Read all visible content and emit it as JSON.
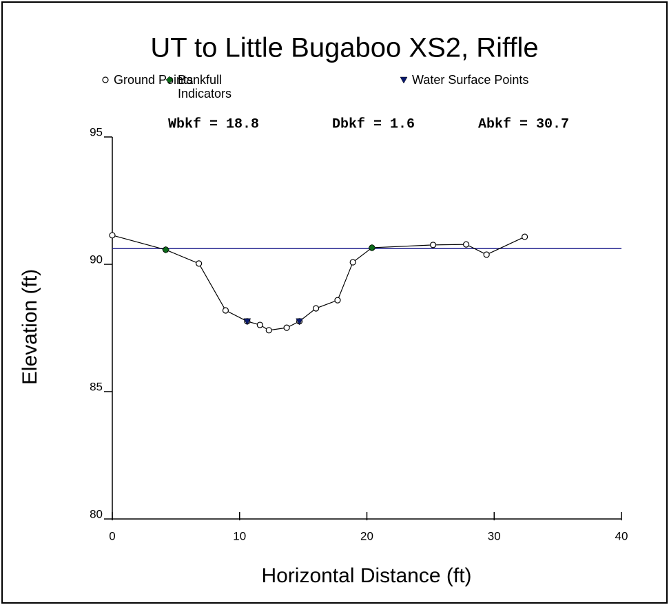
{
  "chart_data": {
    "type": "line",
    "title": "UT to Little Bugaboo XS2, Riffle",
    "xlabel": "Horizontal Distance (ft)",
    "ylabel": "Elevation (ft)",
    "annotations": [
      "Wbkf = 18.8",
      "Dbkf = 1.6",
      "Abkf = 30.7"
    ],
    "xlim": [
      0,
      40
    ],
    "xticks": [
      0,
      10,
      20,
      30,
      40
    ],
    "ylim": [
      80,
      95
    ],
    "yticks": [
      80,
      85,
      90,
      95
    ],
    "hline": {
      "value": 90.62,
      "color": "#1c1c8c"
    },
    "series": [
      {
        "name": "Ground Points",
        "marker": "circle",
        "color": "#000000",
        "x": [
          0,
          4.2,
          6.8,
          8.9,
          10.6,
          11.6,
          12.3,
          13.7,
          14.7,
          16.0,
          17.7,
          18.9,
          20.4,
          25.2,
          27.8,
          29.4,
          32.4
        ],
        "values": [
          91.14,
          90.57,
          90.03,
          88.19,
          87.76,
          87.62,
          87.41,
          87.51,
          87.76,
          88.27,
          88.59,
          90.08,
          90.65,
          90.76,
          90.78,
          90.38,
          91.08
        ]
      },
      {
        "name": "Bankfull Indicators",
        "marker": "diamond",
        "color": "#0d6b1a",
        "x": [
          4.2,
          20.4
        ],
        "values": [
          90.57,
          90.65
        ]
      },
      {
        "name": "Water Surface Points",
        "marker": "triangle",
        "color": "#0a1a6e",
        "x": [
          10.6,
          14.7
        ],
        "values": [
          87.76,
          87.76
        ]
      }
    ]
  }
}
